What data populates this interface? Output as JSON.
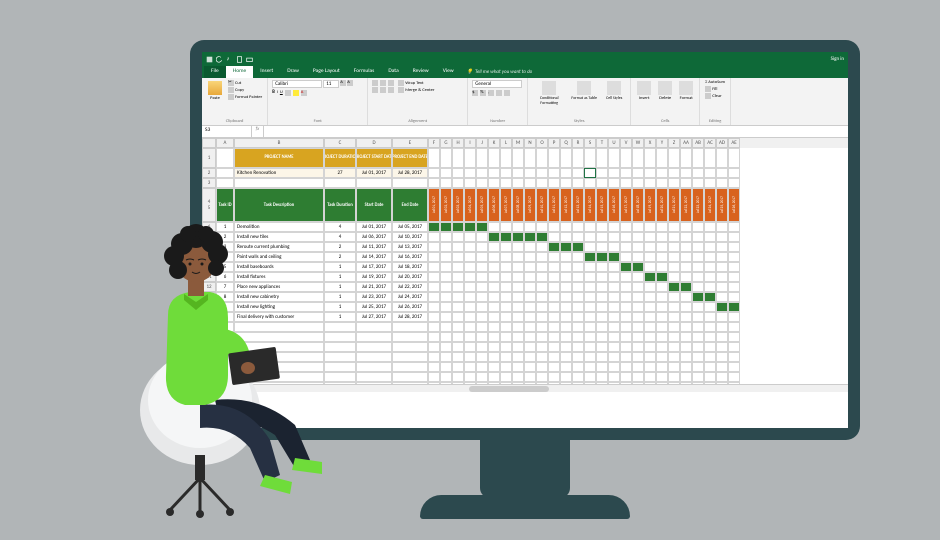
{
  "window": {
    "signin": "Sign in"
  },
  "ribbon": {
    "tabs": {
      "file": "File",
      "home": "Home",
      "insert": "Insert",
      "draw": "Draw",
      "page_layout": "Page Layout",
      "formulas": "Formulas",
      "data": "Data",
      "review": "Review",
      "view": "View"
    },
    "tellme": "Tell me what you want to do",
    "groups": {
      "clipboard": "Clipboard",
      "font": "Font",
      "alignment": "Alignment",
      "number": "Number",
      "styles": "Styles",
      "cells": "Cells",
      "editing": "Editing"
    },
    "clipboard": {
      "paste": "Paste",
      "cut": "Cut",
      "copy": "Copy",
      "format_painter": "Format Painter"
    },
    "font": {
      "name": "Calibri",
      "size": "11"
    },
    "alignment": {
      "wrap": "Wrap Text",
      "merge": "Merge & Center"
    },
    "number": {
      "format": "General"
    },
    "styles": {
      "cond": "Conditional Formatting",
      "table": "Format as Table",
      "cell": "Cell Styles"
    },
    "cells": {
      "insert": "Insert",
      "delete": "Delete",
      "format": "Format"
    },
    "editing": {
      "autosum": "AutoSum",
      "fill": "Fill",
      "clear": "Clear"
    }
  },
  "formula_bar": {
    "name_box": "S3",
    "formula": ""
  },
  "columns": {
    "letters": [
      "A",
      "B",
      "C",
      "D",
      "E",
      "F",
      "G",
      "H",
      "I",
      "J",
      "K",
      "L",
      "M",
      "N",
      "O",
      "P",
      "Q",
      "R",
      "S",
      "T",
      "U",
      "V",
      "W",
      "X",
      "Y",
      "Z",
      "AA",
      "AB",
      "AC",
      "AD",
      "AE"
    ],
    "widths": {
      "A": 18,
      "B": 90,
      "C": 32,
      "D": 36,
      "E": 36,
      "date": 12
    }
  },
  "project_header": {
    "labels": {
      "name": "PROJECT NAME",
      "duration": "PROJECT DURATION",
      "start": "PROJECT START DATE",
      "end": "PROJECT END DATE"
    },
    "values": {
      "name": "Kitchen Renovation",
      "duration": "27",
      "start": "Jul 01, 2017",
      "end": "Jul 28, 2017"
    }
  },
  "task_headers": {
    "id": "Task ID",
    "desc": "Task Description",
    "duration": "Task Duration",
    "start": "Start Date",
    "end": "End Date"
  },
  "date_columns": [
    "Jul 01, 2017",
    "Jul 02, 2017",
    "Jul 03, 2017",
    "Jul 04, 2017",
    "Jul 05, 2017",
    "Jul 06, 2017",
    "Jul 07, 2017",
    "Jul 08, 2017",
    "Jul 09, 2017",
    "Jul 10, 2017",
    "Jul 11, 2017",
    "Jul 12, 2017",
    "Jul 13, 2017",
    "Jul 14, 2017",
    "Jul 15, 2017",
    "Jul 16, 2017",
    "Jul 17, 2017",
    "Jul 18, 2017",
    "Jul 19, 2017",
    "Jul 20, 2017",
    "Jul 21, 2017",
    "Jul 22, 2017",
    "Jul 23, 2017",
    "Jul 24, 2017",
    "Jul 25, 2017",
    "Jul 26, 2017",
    "Jul 27, 2017",
    "Jul 28, 2017"
  ],
  "tasks": [
    {
      "row": 6,
      "id": "1",
      "desc": "Demolition",
      "duration": "4",
      "start": "Jul 01, 2017",
      "end": "Jul 05, 2017",
      "gantt_start": 0,
      "gantt_len": 5
    },
    {
      "row": 7,
      "id": "2",
      "desc": "Install new tiles",
      "duration": "4",
      "start": "Jul 06, 2017",
      "end": "Jul 10, 2017",
      "gantt_start": 5,
      "gantt_len": 5
    },
    {
      "row": 8,
      "id": "3",
      "desc": "Reroute current plumbing",
      "duration": "2",
      "start": "Jul 11, 2017",
      "end": "Jul 13, 2017",
      "gantt_start": 10,
      "gantt_len": 3
    },
    {
      "row": 9,
      "id": "4",
      "desc": "Paint walls and ceiling",
      "duration": "2",
      "start": "Jul 14, 2017",
      "end": "Jul 16, 2017",
      "gantt_start": 13,
      "gantt_len": 3
    },
    {
      "row": 10,
      "id": "5",
      "desc": "Install baseboards",
      "duration": "1",
      "start": "Jul 17, 2017",
      "end": "Jul 18, 2017",
      "gantt_start": 16,
      "gantt_len": 2
    },
    {
      "row": 11,
      "id": "6",
      "desc": "Install fixtures",
      "duration": "1",
      "start": "Jul 19, 2017",
      "end": "Jul 20, 2017",
      "gantt_start": 18,
      "gantt_len": 2
    },
    {
      "row": 12,
      "id": "7",
      "desc": "Place new appliances",
      "duration": "1",
      "start": "Jul 21, 2017",
      "end": "Jul 22, 2017",
      "gantt_start": 20,
      "gantt_len": 2
    },
    {
      "row": 13,
      "id": "8",
      "desc": "Install new cabinetry",
      "duration": "1",
      "start": "Jul 23, 2017",
      "end": "Jul 24, 2017",
      "gantt_start": 22,
      "gantt_len": 2
    },
    {
      "row": 14,
      "id": "9",
      "desc": "Install new lighting",
      "duration": "1",
      "start": "Jul 25, 2017",
      "end": "Jul 26, 2017",
      "gantt_start": 24,
      "gantt_len": 2
    },
    {
      "row": 15,
      "id": "10",
      "desc": "Final delivery with customer",
      "duration": "1",
      "start": "Jul 27, 2017",
      "end": "Jul 28, 2017",
      "gantt_start": 26,
      "gantt_len": 2
    }
  ],
  "colors": {
    "excel_green": "#0e6938",
    "ribbon_bg": "#f3f3f3",
    "project_label_bg": "#d8a420",
    "project_val_bg": "#fcf6e8",
    "task_hdr_bg": "#2e7d32",
    "date_hdr_bg": "#d8621e",
    "gantt_fill": "#2e7d32",
    "grid": "#d4d4d4",
    "page_bg": "#b1b5b7",
    "monitor": "#2c494e"
  }
}
